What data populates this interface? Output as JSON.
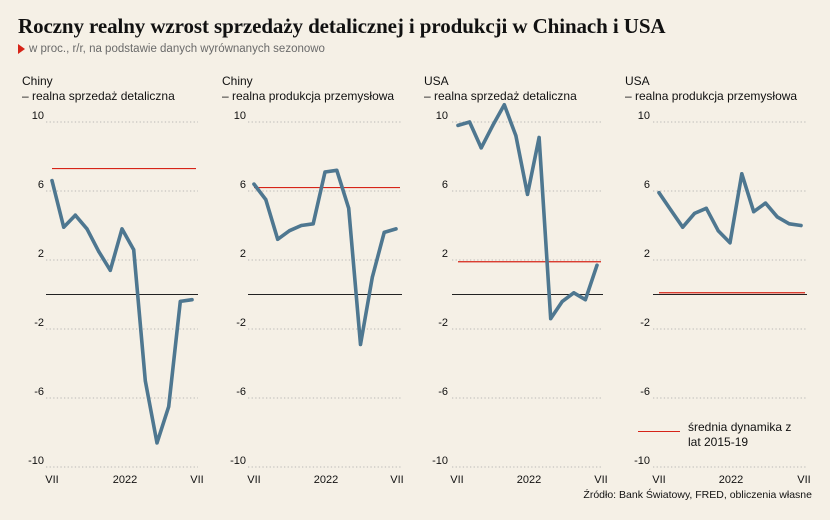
{
  "title": "Roczny realny wzrost sprzedaży detalicznej i produkcji w Chinach i USA",
  "subtitle": "w proc., r/r, na podstawie danych wyrównanych sezonowo",
  "legend_label": "średnia dynamika z lat 2015-19",
  "source": "Źródło: Bank Światowy, FRED, obliczenia własne",
  "colors": {
    "series": "#4e7790",
    "average": "#d62418",
    "zero": "#222222",
    "grid": "#a6a6a6",
    "background": "#f5f0e6"
  },
  "chart_data": [
    {
      "type": "line",
      "country": "Chiny",
      "subtitle": "– realna sprzedaż detaliczna",
      "x": [
        "2021-07",
        "2021-08",
        "2021-09",
        "2021-10",
        "2021-11",
        "2021-12",
        "2022-01",
        "2022-02",
        "2022-03",
        "2022-04",
        "2022-05",
        "2022-06",
        "2022-07"
      ],
      "values": [
        6.6,
        3.9,
        4.6,
        3.8,
        2.5,
        1.4,
        3.8,
        2.6,
        -5.0,
        -8.6,
        -6.5,
        -0.4,
        -0.3
      ],
      "average": 7.3,
      "ylim": [
        -10,
        10
      ],
      "yticks": [
        10,
        6,
        2,
        -2,
        -6,
        -10
      ],
      "xticks": [
        "VII",
        "2022",
        "VII"
      ]
    },
    {
      "type": "line",
      "country": "Chiny",
      "subtitle": "– realna produkcja przemysłowa",
      "x": [
        "2021-07",
        "2021-08",
        "2021-09",
        "2021-10",
        "2021-11",
        "2021-12",
        "2022-01",
        "2022-02",
        "2022-03",
        "2022-04",
        "2022-05",
        "2022-06",
        "2022-07"
      ],
      "values": [
        6.4,
        5.5,
        3.2,
        3.7,
        4.0,
        4.1,
        7.1,
        7.2,
        5.0,
        -2.9,
        1.0,
        3.6,
        3.8
      ],
      "average": 6.2,
      "ylim": [
        -10,
        10
      ],
      "yticks": [
        10,
        6,
        2,
        -2,
        -6,
        -10
      ],
      "xticks": [
        "VII",
        "2022",
        "VII"
      ]
    },
    {
      "type": "line",
      "country": "USA",
      "subtitle": "– realna sprzedaż detaliczna",
      "x": [
        "2021-07",
        "2021-08",
        "2021-09",
        "2021-10",
        "2021-11",
        "2021-12",
        "2022-01",
        "2022-02",
        "2022-03",
        "2022-04",
        "2022-05",
        "2022-06",
        "2022-07"
      ],
      "values": [
        9.8,
        10.0,
        8.5,
        9.8,
        11.0,
        9.2,
        5.8,
        9.1,
        -1.4,
        -0.4,
        0.1,
        -0.3,
        1.7
      ],
      "average": 1.9,
      "ylim": [
        -10,
        10
      ],
      "yticks": [
        10,
        6,
        2,
        -2,
        -6,
        -10
      ],
      "xticks": [
        "VII",
        "2022",
        "VII"
      ]
    },
    {
      "type": "line",
      "country": "USA",
      "subtitle": "– realna produkcja przemysłowa",
      "x": [
        "2021-07",
        "2021-08",
        "2021-09",
        "2021-10",
        "2021-11",
        "2021-12",
        "2022-01",
        "2022-02",
        "2022-03",
        "2022-04",
        "2022-05",
        "2022-06",
        "2022-07"
      ],
      "values": [
        5.9,
        4.9,
        3.9,
        4.7,
        5.0,
        3.7,
        3.0,
        7.0,
        4.8,
        5.3,
        4.5,
        4.1,
        4.0
      ],
      "average": 0.1,
      "ylim": [
        -10,
        10
      ],
      "yticks": [
        10,
        6,
        2,
        -2,
        -6,
        -10
      ],
      "xticks": [
        "VII",
        "2022",
        "VII"
      ]
    }
  ]
}
